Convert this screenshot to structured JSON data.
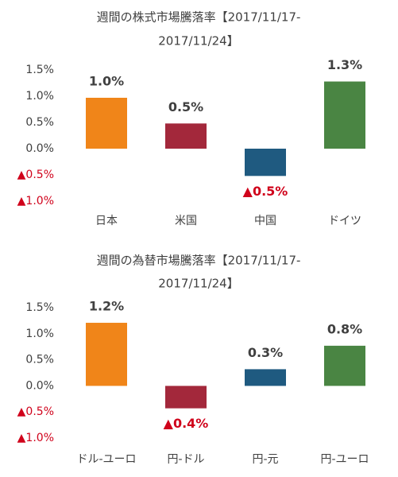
{
  "chart_data": [
    {
      "type": "bar",
      "title": [
        "週間の株式市場騰落率【2017/11/17-",
        "2017/11/24】"
      ],
      "categories": [
        "日本",
        "米国",
        "中国",
        "ドイツ"
      ],
      "series": [
        {
          "colors": [
            "#f08519",
            "#a3283b",
            "#1f5a80",
            "#4a8543"
          ],
          "values": [
            0.97,
            0.48,
            -0.52,
            1.28
          ],
          "value_labels": [
            "1.0%",
            "0.5%",
            "▲0.5%",
            "1.3%"
          ]
        }
      ],
      "ylim": [
        -1.0,
        1.5
      ],
      "yticks": [
        {
          "value": 1.5,
          "label": "1.5%"
        },
        {
          "value": 1.0,
          "label": "1.0%"
        },
        {
          "value": 0.5,
          "label": "0.5%"
        },
        {
          "value": 0,
          "label": "0.0%"
        },
        {
          "value": -0.5,
          "label": "▲0.5%"
        },
        {
          "value": -1.0,
          "label": "▲1.0%"
        }
      ],
      "grid": false
    },
    {
      "type": "bar",
      "title": [
        "週間の為替市場騰落率【2017/11/17-",
        "2017/11/24】"
      ],
      "categories": [
        "ドル-ユーロ",
        "円-ドル",
        "円-元",
        "円-ユーロ"
      ],
      "series": [
        {
          "colors": [
            "#f08519",
            "#a3283b",
            "#1f5a80",
            "#4a8543"
          ],
          "values": [
            1.21,
            -0.43,
            0.32,
            0.77
          ],
          "value_labels": [
            "1.2%",
            "▲0.4%",
            "0.3%",
            "0.8%"
          ]
        }
      ],
      "ylim": [
        -1.0,
        1.5
      ],
      "yticks": [
        {
          "value": 1.5,
          "label": "1.5%"
        },
        {
          "value": 1.0,
          "label": "1.0%"
        },
        {
          "value": 0.5,
          "label": "0.5%"
        },
        {
          "value": 0,
          "label": "0.0%"
        },
        {
          "value": -0.5,
          "label": "▲0.5%"
        },
        {
          "value": -1.0,
          "label": "▲1.0%"
        }
      ],
      "grid": false
    }
  ]
}
